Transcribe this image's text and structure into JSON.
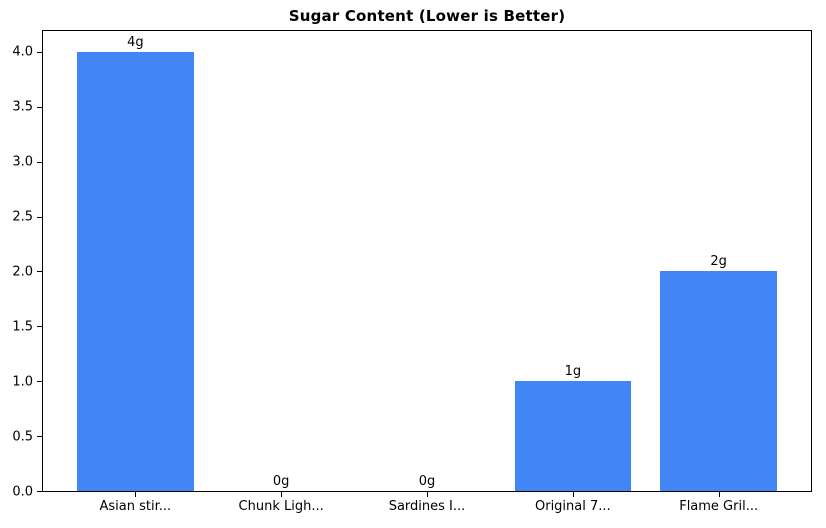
{
  "chart_data": {
    "type": "bar",
    "title": "Sugar Content (Lower is Better)",
    "categories": [
      "Asian stir...",
      "Chunk Ligh...",
      "Sardines I...",
      "Original 7...",
      "Flame Gril..."
    ],
    "values": [
      4,
      0,
      0,
      1,
      2
    ],
    "bar_labels": [
      "4g",
      "0g",
      "0g",
      "1g",
      "2g"
    ],
    "yticks": [
      0.0,
      0.5,
      1.0,
      1.5,
      2.0,
      2.5,
      3.0,
      3.5,
      4.0
    ],
    "ytick_labels": [
      "0.0",
      "0.5",
      "1.0",
      "1.5",
      "2.0",
      "2.5",
      "3.0",
      "3.5",
      "4.0"
    ],
    "ylim": [
      0,
      4.2
    ],
    "bar_width_ratio": 0.8,
    "xlabel": "",
    "ylabel": "",
    "grid": false,
    "legend": null,
    "bar_color": "#4285F4",
    "text_color": "#000000",
    "background_color": "#ffffff",
    "spine_color": "#000000"
  }
}
